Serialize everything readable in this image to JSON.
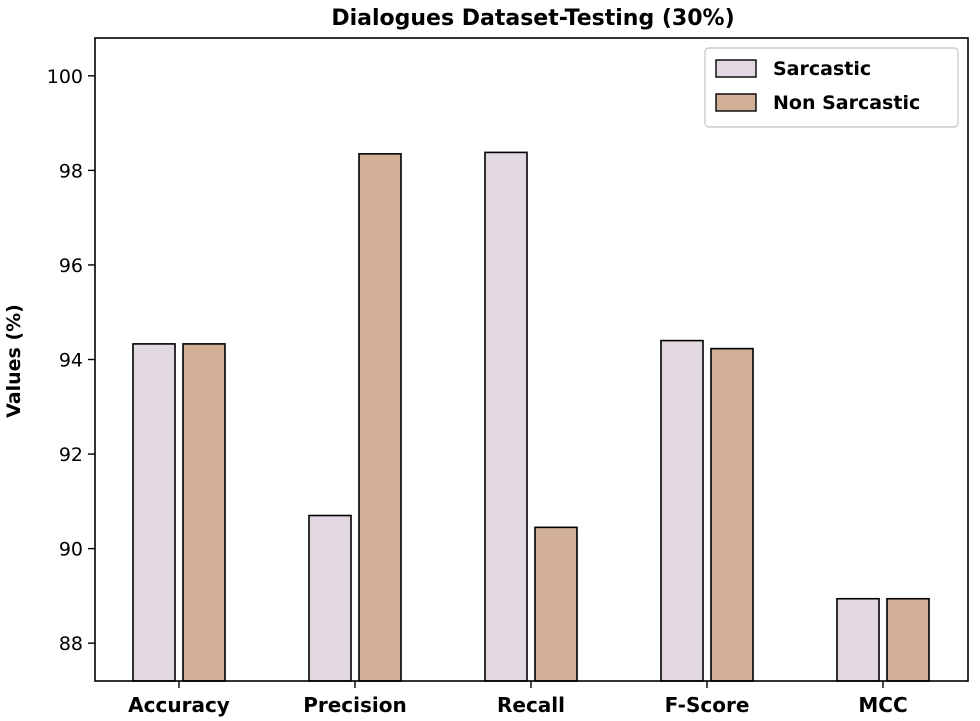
{
  "chart_data": {
    "type": "bar",
    "title": "Dialogues Dataset-Testing (30%)",
    "xlabel": "",
    "ylabel": "Values (%)",
    "ylim": [
      87.2,
      100.8
    ],
    "yticks": [
      88,
      90,
      92,
      94,
      96,
      98,
      100
    ],
    "categories": [
      "Accuracy",
      "Precision",
      "Recall",
      "F-Score",
      "MCC"
    ],
    "series": [
      {
        "name": "Sarcastic",
        "color": "#e2d8e2",
        "values": [
          94.33,
          90.7,
          98.38,
          94.4,
          88.94
        ]
      },
      {
        "name": "Non Sarcastic",
        "color": "#d2b098",
        "values": [
          94.33,
          98.35,
          90.45,
          94.23,
          88.94
        ]
      }
    ],
    "legend_position": "top-right",
    "grid": false
  }
}
